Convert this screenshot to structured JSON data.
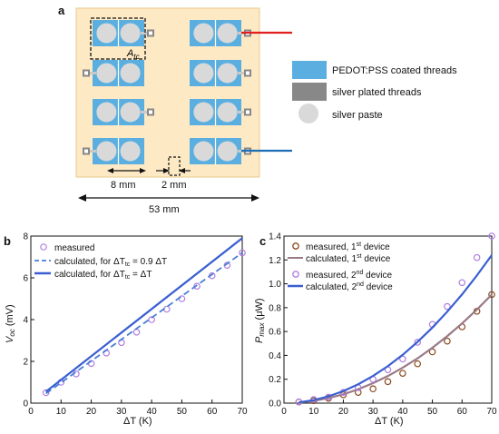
{
  "panel_a": {
    "label": "a",
    "atc_label": "A",
    "atc_sub": "tc",
    "dim_8": "8 mm",
    "dim_2": "2 mm",
    "dim_53": "53 mm",
    "key": [
      {
        "label": "PEDOT:PSS coated threads",
        "color": "#5aafe0"
      },
      {
        "label": "silver plated threads",
        "color": "#888888"
      },
      {
        "label": "silver paste",
        "color": "#d9d9d9"
      }
    ],
    "colors": {
      "substrate": "#fde9c4",
      "substrate_border": "#e9c98c",
      "red_wire": "#e02020",
      "blue_wire": "#1f6fb5"
    }
  },
  "chart_data": [
    {
      "label": "b",
      "type": "line",
      "xlabel": "ΔT (K)",
      "ylabel_main": "V",
      "ylabel_sub": "oc",
      "ylabel_unit": " (mV)",
      "xlim": [
        0,
        70
      ],
      "ylim": [
        0,
        8
      ],
      "xticks": [
        "0",
        "10",
        "20",
        "30",
        "40",
        "50",
        "60",
        "70"
      ],
      "yticks": [
        "0",
        "2",
        "4",
        "6",
        "8"
      ],
      "legend": {
        "measured": "measured",
        "calc_part": "calculated, for ΔT",
        "calc_sub": "tc",
        "calc1_tail": " = 0.9 ΔT",
        "calc2_tail": " = ΔT"
      },
      "series": [
        {
          "key": "measured",
          "kind": "scatter",
          "color": "#b07de0",
          "x": [
            5,
            10,
            15,
            20,
            25,
            30,
            35,
            40,
            45,
            50,
            55,
            60,
            65,
            70
          ],
          "y": [
            0.5,
            1.0,
            1.4,
            1.9,
            2.4,
            2.9,
            3.4,
            4.0,
            4.5,
            5.0,
            5.6,
            6.1,
            6.6,
            7.2
          ]
        },
        {
          "key": "calc1",
          "kind": "dashed",
          "color": "#4a7fd6",
          "x": [
            5,
            70
          ],
          "y": [
            0.46,
            7.2
          ]
        },
        {
          "key": "calc2",
          "kind": "solid",
          "color": "#3a5fd0",
          "x": [
            5,
            70
          ],
          "y": [
            0.55,
            7.9
          ]
        }
      ]
    },
    {
      "label": "c",
      "type": "line",
      "xlabel": "ΔT (K)",
      "ylabel_main": "P",
      "ylabel_sub": "max",
      "ylabel_unit": " (μW)",
      "xlim": [
        0,
        70
      ],
      "ylim": [
        0,
        1.4
      ],
      "xticks": [
        "0",
        "10",
        "20",
        "30",
        "40",
        "50",
        "60",
        "70"
      ],
      "yticks": [
        "0.0",
        "0.2",
        "0.4",
        "0.6",
        "0.8",
        "1.0",
        "1.2",
        "1.4"
      ],
      "legend": {
        "meas1": "measured, 1",
        "calc1": "calculated, 1",
        "meas2": "measured, 2",
        "calc2": "calculated, 2",
        "st": "st",
        "nd": "nd",
        "device": " device"
      },
      "series": [
        {
          "key": "meas1",
          "kind": "scatter",
          "color": "#8b4a1e",
          "x": [
            5,
            10,
            15,
            20,
            25,
            30,
            35,
            40,
            45,
            50,
            55,
            60,
            65,
            70
          ],
          "y": [
            0.01,
            0.02,
            0.04,
            0.07,
            0.09,
            0.12,
            0.18,
            0.25,
            0.33,
            0.43,
            0.52,
            0.64,
            0.77,
            0.91
          ]
        },
        {
          "key": "calc1",
          "kind": "solid",
          "color": "#9a7a86",
          "x": [
            5,
            10,
            15,
            20,
            25,
            30,
            35,
            40,
            45,
            50,
            55,
            60,
            65,
            70
          ],
          "y": [
            0.005,
            0.019,
            0.042,
            0.074,
            0.116,
            0.167,
            0.227,
            0.297,
            0.375,
            0.464,
            0.561,
            0.668,
            0.784,
            0.909
          ]
        },
        {
          "key": "meas2",
          "kind": "scatter",
          "color": "#b07de0",
          "x": [
            5,
            10,
            15,
            20,
            25,
            30,
            35,
            40,
            45,
            50,
            55,
            60,
            65,
            70
          ],
          "y": [
            0.01,
            0.03,
            0.05,
            0.09,
            0.13,
            0.2,
            0.28,
            0.37,
            0.51,
            0.66,
            0.81,
            1.01,
            1.22,
            1.4
          ]
        },
        {
          "key": "calc2",
          "kind": "solid",
          "color": "#3a5fd0",
          "x": [
            5,
            10,
            15,
            20,
            25,
            30,
            35,
            40,
            45,
            50,
            55,
            60,
            65,
            70
          ],
          "y": [
            0.006,
            0.025,
            0.057,
            0.101,
            0.158,
            0.228,
            0.31,
            0.405,
            0.513,
            0.633,
            0.766,
            0.911,
            1.07,
            1.24
          ]
        }
      ]
    }
  ]
}
